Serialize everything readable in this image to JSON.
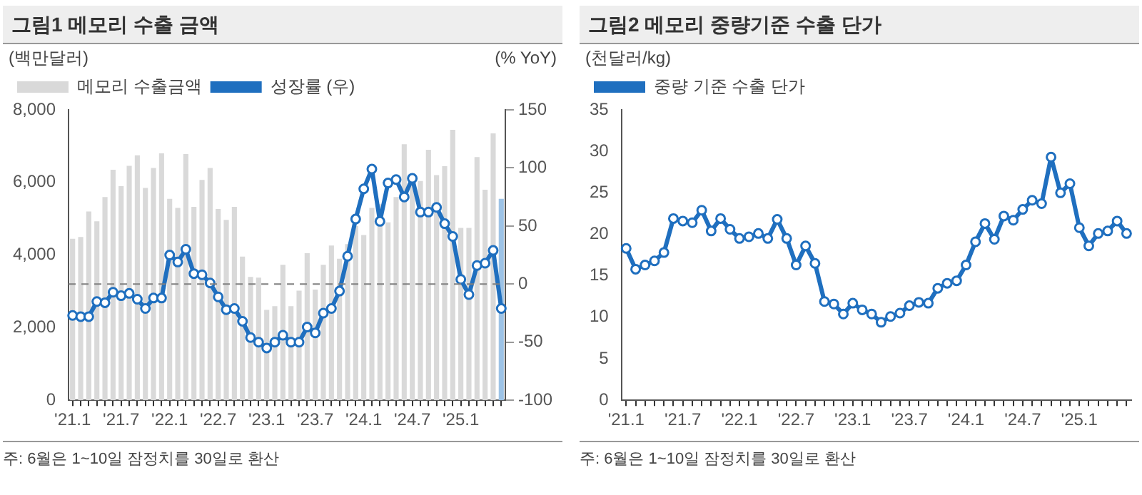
{
  "chart_data": [
    {
      "type": "bar",
      "title": "그림1 메모리 수출 금액",
      "ylabel": "(백만달러)",
      "y2label": "(% YoY)",
      "legend": "top left",
      "grid": false,
      "categories": [
        "'21.1",
        null,
        null,
        null,
        null,
        null,
        "'21.7",
        null,
        null,
        null,
        null,
        null,
        "'22.1",
        null,
        null,
        null,
        null,
        null,
        "'22.7",
        null,
        null,
        null,
        null,
        null,
        "'23.1",
        null,
        null,
        null,
        null,
        null,
        "'23.7",
        null,
        null,
        null,
        null,
        null,
        "'24.1",
        null,
        null,
        null,
        null,
        null,
        "'24.7",
        null,
        null,
        null,
        null,
        null,
        "'25.1",
        null,
        null,
        null,
        null,
        null
      ],
      "series": [
        {
          "name": "메모리 수출금액",
          "type": "bar",
          "color": "#d9d9d9",
          "colors": [
            "#d9d9d9",
            "#d9d9d9",
            "#d9d9d9",
            "#d9d9d9",
            "#d9d9d9",
            "#d9d9d9",
            "#d9d9d9",
            "#d9d9d9",
            "#d9d9d9",
            "#d9d9d9",
            "#d9d9d9",
            "#d9d9d9",
            "#d9d9d9",
            "#d9d9d9",
            "#d9d9d9",
            "#d9d9d9",
            "#d9d9d9",
            "#d9d9d9",
            "#d9d9d9",
            "#d9d9d9",
            "#d9d9d9",
            "#d9d9d9",
            "#d9d9d9",
            "#d9d9d9",
            "#d9d9d9",
            "#d9d9d9",
            "#d9d9d9",
            "#d9d9d9",
            "#d9d9d9",
            "#d9d9d9",
            "#d9d9d9",
            "#d9d9d9",
            "#d9d9d9",
            "#d9d9d9",
            "#d9d9d9",
            "#d9d9d9",
            "#d9d9d9",
            "#d9d9d9",
            "#d9d9d9",
            "#d9d9d9",
            "#d9d9d9",
            "#d9d9d9",
            "#d9d9d9",
            "#d9d9d9",
            "#d9d9d9",
            "#d9d9d9",
            "#d9d9d9",
            "#d9d9d9",
            "#d9d9d9",
            "#d9d9d9",
            "#d9d9d9",
            "#d9d9d9",
            "#d9d9d9",
            "#9dc3e6"
          ],
          "values": [
            4450,
            4500,
            5200,
            4930,
            5600,
            6350,
            5900,
            6460,
            6750,
            5850,
            6400,
            6800,
            5550,
            5300,
            6780,
            5330,
            6070,
            6400,
            5270,
            4970,
            5330,
            3960,
            3400,
            3380,
            2490,
            2590,
            3730,
            2590,
            3020,
            4050,
            3050,
            3730,
            4260,
            3900,
            4300,
            4800,
            4550,
            5300,
            5400,
            4900,
            5600,
            7050,
            6000,
            6040,
            6900,
            6200,
            6450,
            7450,
            4750,
            4750,
            6700,
            5800,
            7350,
            5550
          ]
        },
        {
          "name": "성장률 (우)",
          "type": "line",
          "axis": "y2",
          "color": "#1f6fbf",
          "marker": "circle",
          "line_style": "solid",
          "values": [
            -27,
            -28,
            -28,
            -15,
            -16,
            -7,
            -10,
            -8,
            -13,
            -21,
            -12,
            -12,
            25,
            19,
            30,
            9,
            8,
            1,
            -11,
            -22,
            -21,
            -32,
            -46,
            -50,
            -55,
            -50,
            -44,
            -50,
            -50,
            -37,
            -42,
            -25,
            -21,
            -6,
            24,
            56,
            82,
            99,
            54,
            87,
            90,
            75,
            91,
            62,
            62,
            66,
            52,
            41,
            4,
            -9,
            16,
            18,
            29,
            -21
          ]
        }
      ],
      "ylim": [
        0,
        8000
      ],
      "yticks": [
        {
          "value": 0,
          "label": "0"
        },
        {
          "value": 2000,
          "label": "2,000"
        },
        {
          "value": 4000,
          "label": "4,000"
        },
        {
          "value": 6000,
          "label": "6,000"
        },
        {
          "value": 8000,
          "label": "8,000"
        }
      ],
      "y2lim": [
        -100,
        150
      ],
      "y2ticks": [
        -100,
        -50,
        0,
        50,
        100,
        150
      ],
      "ref_lines": [
        {
          "axis": "y2",
          "value": 0,
          "color": "#808080",
          "line_style": "dashed"
        }
      ],
      "annotations": [
        "주: 6월은 1~10일 잠정치를 30일로 환산"
      ]
    },
    {
      "type": "line",
      "title": "그림2 메모리 중량기준 수출 단가",
      "ylabel": "(천달러/kg)",
      "legend": "top left",
      "grid": false,
      "categories": [
        "'21.1",
        null,
        null,
        null,
        null,
        null,
        "'21.7",
        null,
        null,
        null,
        null,
        null,
        "'22.1",
        null,
        null,
        null,
        null,
        null,
        "'22.7",
        null,
        null,
        null,
        null,
        null,
        "'23.1",
        null,
        null,
        null,
        null,
        null,
        "'23.7",
        null,
        null,
        null,
        null,
        null,
        "'24.1",
        null,
        null,
        null,
        null,
        null,
        "'24.7",
        null,
        null,
        null,
        null,
        null,
        "'25.1",
        null,
        null,
        null,
        null,
        null
      ],
      "series": [
        {
          "name": "중량 기준 수출 단가",
          "color": "#1f6fbf",
          "marker": "circle",
          "line_style": "solid",
          "values": [
            18.3,
            15.8,
            16.3,
            16.8,
            17.8,
            21.9,
            21.6,
            21.4,
            22.9,
            20.4,
            21.9,
            20.6,
            19.5,
            19.7,
            20.1,
            19.5,
            21.8,
            19.5,
            16.3,
            18.6,
            16.5,
            11.9,
            11.6,
            10.4,
            11.7,
            10.9,
            10.4,
            9.4,
            10.1,
            10.5,
            11.4,
            11.8,
            11.7,
            13.5,
            14.1,
            14.4,
            16.3,
            19.1,
            21.3,
            19.4,
            22.2,
            21.7,
            23.0,
            24.1,
            23.7,
            29.3,
            25.0,
            26.1,
            20.8,
            18.6,
            20.1,
            20.4,
            21.6,
            20.1
          ]
        }
      ],
      "ylim": [
        0,
        35
      ],
      "yticks": [
        0,
        5,
        10,
        15,
        20,
        25,
        30,
        35
      ],
      "annotations": [
        "주: 6월은 1~10일 잠정치를 30일로 환산"
      ]
    }
  ]
}
